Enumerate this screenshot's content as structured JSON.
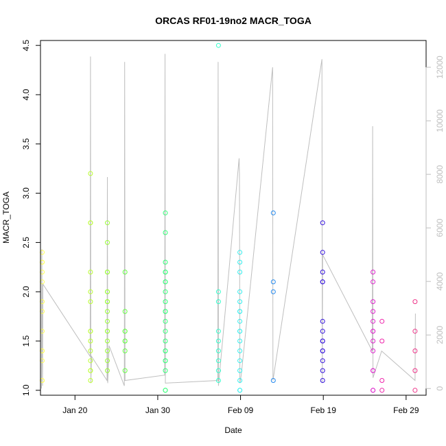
{
  "chart_data": {
    "type": "scatter",
    "title": "ORCAS RF01-19no2 MACR_TOGA",
    "xlabel": "Date",
    "ylabel": "MACR_TOGA",
    "x_axis": {
      "type": "date",
      "range": [
        "2016-01-15T20:00",
        "2016-03-02T10:00"
      ],
      "ticks": [
        {
          "value": "2016-01-20",
          "label": "Jan 20"
        },
        {
          "value": "2016-01-30",
          "label": "Jan 30"
        },
        {
          "value": "2016-02-09",
          "label": "Feb 09"
        },
        {
          "value": "2016-02-19",
          "label": "Feb 19"
        },
        {
          "value": "2016-02-29",
          "label": "Feb 29"
        }
      ]
    },
    "y_axis": {
      "range": [
        0.95,
        4.55
      ],
      "ticks": [
        1.0,
        1.5,
        2.0,
        2.5,
        3.0,
        3.5,
        4.0,
        4.5
      ],
      "tick_labels": [
        "1.0",
        "1.5",
        "2.0",
        "2.5",
        "3.0",
        "3.5",
        "4.0",
        "4.5"
      ]
    },
    "y2_axis": {
      "range": [
        -250,
        13000
      ],
      "ticks": [
        0,
        2000,
        4000,
        6000,
        8000,
        10000,
        12000
      ],
      "tick_labels": [
        "0",
        "2000",
        "4000",
        "6000",
        "8000",
        "10000",
        "12000"
      ],
      "color": "#bebebe"
    },
    "grid": false,
    "flights": [
      {
        "date": "2016-01-16T01:00",
        "color": "#ffff55",
        "values": [
          2.4,
          2.3,
          2.3,
          2.2,
          2.1,
          1.9,
          1.8,
          1.6,
          1.4,
          1.4,
          1.3,
          1.1,
          1.1
        ]
      },
      {
        "date": "2016-01-21T21:00",
        "color": "#bbff33",
        "values": [
          3.2,
          2.7,
          2.7,
          2.2,
          2.0,
          1.9,
          1.6,
          1.6,
          1.5,
          1.4,
          1.3,
          1.2,
          1.2,
          1.1
        ]
      },
      {
        "date": "2016-01-23T22:00",
        "color": "#99ff33",
        "values": [
          2.7,
          2.5,
          2.2,
          2.2,
          2.0,
          2.0,
          1.9,
          1.9,
          1.8,
          1.7,
          1.6,
          1.6,
          1.5,
          1.4,
          1.3,
          1.2
        ]
      },
      {
        "date": "2016-01-26T01:00",
        "color": "#66ff44",
        "values": [
          2.2,
          1.8,
          1.6,
          1.6,
          1.5,
          1.5,
          1.4,
          1.2
        ]
      },
      {
        "date": "2016-01-30T22:00",
        "color": "#33ff77",
        "values": [
          2.8,
          2.6,
          2.3,
          2.2,
          2.2,
          2.1,
          2.1,
          2.0,
          1.9,
          1.8,
          1.8,
          1.7,
          1.6,
          1.5,
          1.4,
          1.4,
          1.3,
          1.3,
          1.2,
          1.0,
          1.0
        ]
      },
      {
        "date": "2016-02-06T08:00",
        "color": "#33ffcc",
        "values": [
          4.5,
          2.0,
          1.9,
          1.6,
          1.5,
          1.4,
          1.3,
          1.2,
          1.1
        ]
      },
      {
        "date": "2016-02-08T22:00",
        "color": "#33eeee",
        "values": [
          2.4,
          2.3,
          2.2,
          2.0,
          1.9,
          1.8,
          1.8,
          1.7,
          1.6,
          1.6,
          1.5,
          1.4,
          1.3,
          1.2,
          1.1,
          1.0,
          1.0
        ]
      },
      {
        "date": "2016-02-12T23:00",
        "color": "#2288ee",
        "values": [
          2.8,
          2.1,
          2.0,
          1.1
        ]
      },
      {
        "date": "2016-02-18T22:00",
        "color": "#3311dd",
        "values": [
          2.7,
          2.4,
          2.2,
          2.1,
          2.1,
          1.7,
          1.6,
          1.5,
          1.5,
          1.4,
          1.4,
          1.3,
          1.2,
          1.1
        ]
      },
      {
        "date": "2016-02-25T00:00",
        "color": "#dd22cc",
        "values": [
          2.2,
          2.1,
          1.9,
          1.8,
          1.7,
          1.6,
          1.6,
          1.5,
          1.4,
          1.2,
          1.2,
          1.0,
          1.0
        ]
      },
      {
        "date": "2016-02-26T02:00",
        "color": "#ee22aa",
        "values": [
          1.7,
          1.5,
          1.1,
          1.0
        ]
      },
      {
        "date": "2016-03-01T02:00",
        "color": "#ee3388",
        "values": [
          1.9,
          1.6,
          1.4,
          1.2,
          1.0
        ]
      }
    ],
    "altitude_series": {
      "name": "",
      "color": "#bebebe",
      "points": [
        {
          "x": "2016-01-15T23:00",
          "y": 0
        },
        {
          "x": "2016-01-16T00:00",
          "y": 5200
        },
        {
          "x": "2016-01-16T01:00",
          "y": 1500
        },
        {
          "x": "2016-01-16T02:00",
          "y": 100
        },
        {
          "x": "2016-01-16T03:00",
          "y": 3900
        },
        {
          "x": "2016-01-21T20:00",
          "y": 1200
        },
        {
          "x": "2016-01-21T21:00",
          "y": 12400
        },
        {
          "x": "2016-01-21T22:00",
          "y": 200
        },
        {
          "x": "2016-01-22T00:00",
          "y": 1200
        },
        {
          "x": "2016-01-23T21:00",
          "y": 300
        },
        {
          "x": "2016-01-23T22:00",
          "y": 7900
        },
        {
          "x": "2016-01-23T23:00",
          "y": 200
        },
        {
          "x": "2016-01-24T03:00",
          "y": 1600
        },
        {
          "x": "2016-01-25T23:00",
          "y": 100
        },
        {
          "x": "2016-01-26T00:00",
          "y": 12200
        },
        {
          "x": "2016-01-26T01:00",
          "y": 300
        },
        {
          "x": "2016-01-30T20:00",
          "y": 500
        },
        {
          "x": "2016-01-30T21:00",
          "y": 12500
        },
        {
          "x": "2016-01-30T22:00",
          "y": 200
        },
        {
          "x": "2016-02-06T06:00",
          "y": 300
        },
        {
          "x": "2016-02-06T07:00",
          "y": 12200
        },
        {
          "x": "2016-02-06T08:00",
          "y": 100
        },
        {
          "x": "2016-02-08T20:00",
          "y": 8600
        },
        {
          "x": "2016-02-08T21:00",
          "y": 8000
        },
        {
          "x": "2016-02-08T22:00",
          "y": 200
        },
        {
          "x": "2016-02-09T02:00",
          "y": 500
        },
        {
          "x": "2016-02-12T21:00",
          "y": 12000
        },
        {
          "x": "2016-02-12T22:00",
          "y": 300
        },
        {
          "x": "2016-02-18T20:00",
          "y": 12300
        },
        {
          "x": "2016-02-18T21:00",
          "y": 200
        },
        {
          "x": "2016-02-18T22:00",
          "y": 5000
        },
        {
          "x": "2016-02-24T22:00",
          "y": 1400
        },
        {
          "x": "2016-02-24T23:00",
          "y": 9800
        },
        {
          "x": "2016-02-25T00:00",
          "y": 400
        },
        {
          "x": "2016-02-26T01:00",
          "y": 1400
        },
        {
          "x": "2016-03-01T02:00",
          "y": 300
        },
        {
          "x": "2016-03-01T03:00",
          "y": 2800
        }
      ]
    }
  }
}
